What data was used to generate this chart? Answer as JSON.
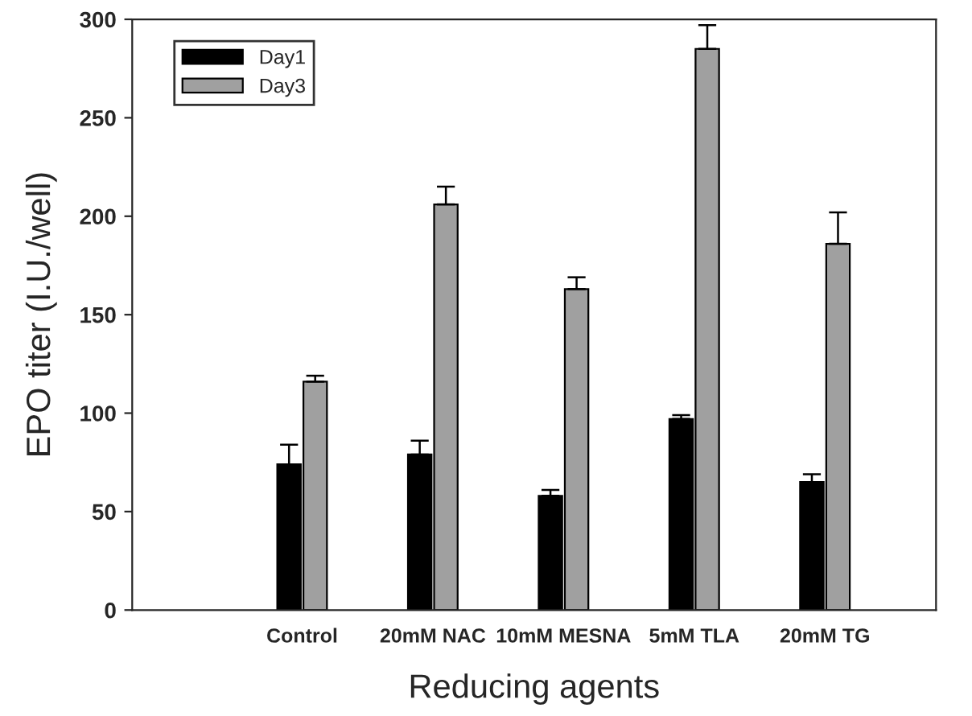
{
  "chart_data": {
    "type": "bar",
    "xlabel": "Reducing agents",
    "ylabel": "EPO titer (I.U./well)",
    "categories": [
      "Control",
      "20mM NAC",
      "10mM MESNA",
      "5mM TLA",
      "20mM TG"
    ],
    "series": [
      {
        "name": "Day1",
        "color": "#000000",
        "values": [
          74,
          79,
          58,
          97,
          65
        ],
        "errors": [
          [
            74,
            84
          ],
          [
            79,
            86
          ],
          [
            58,
            61
          ],
          [
            97,
            99
          ],
          [
            65,
            69
          ]
        ]
      },
      {
        "name": "Day3",
        "color": "#a0a0a0",
        "values": [
          116,
          206,
          163,
          285,
          186
        ],
        "errors": [
          [
            116,
            119
          ],
          [
            206,
            215
          ],
          [
            163,
            169
          ],
          [
            285,
            297
          ],
          [
            186,
            202
          ]
        ]
      }
    ],
    "ylim": [
      0,
      300
    ],
    "yticks": [
      0,
      50,
      100,
      150,
      200,
      250,
      300
    ],
    "legend": "top left",
    "grid": false
  }
}
